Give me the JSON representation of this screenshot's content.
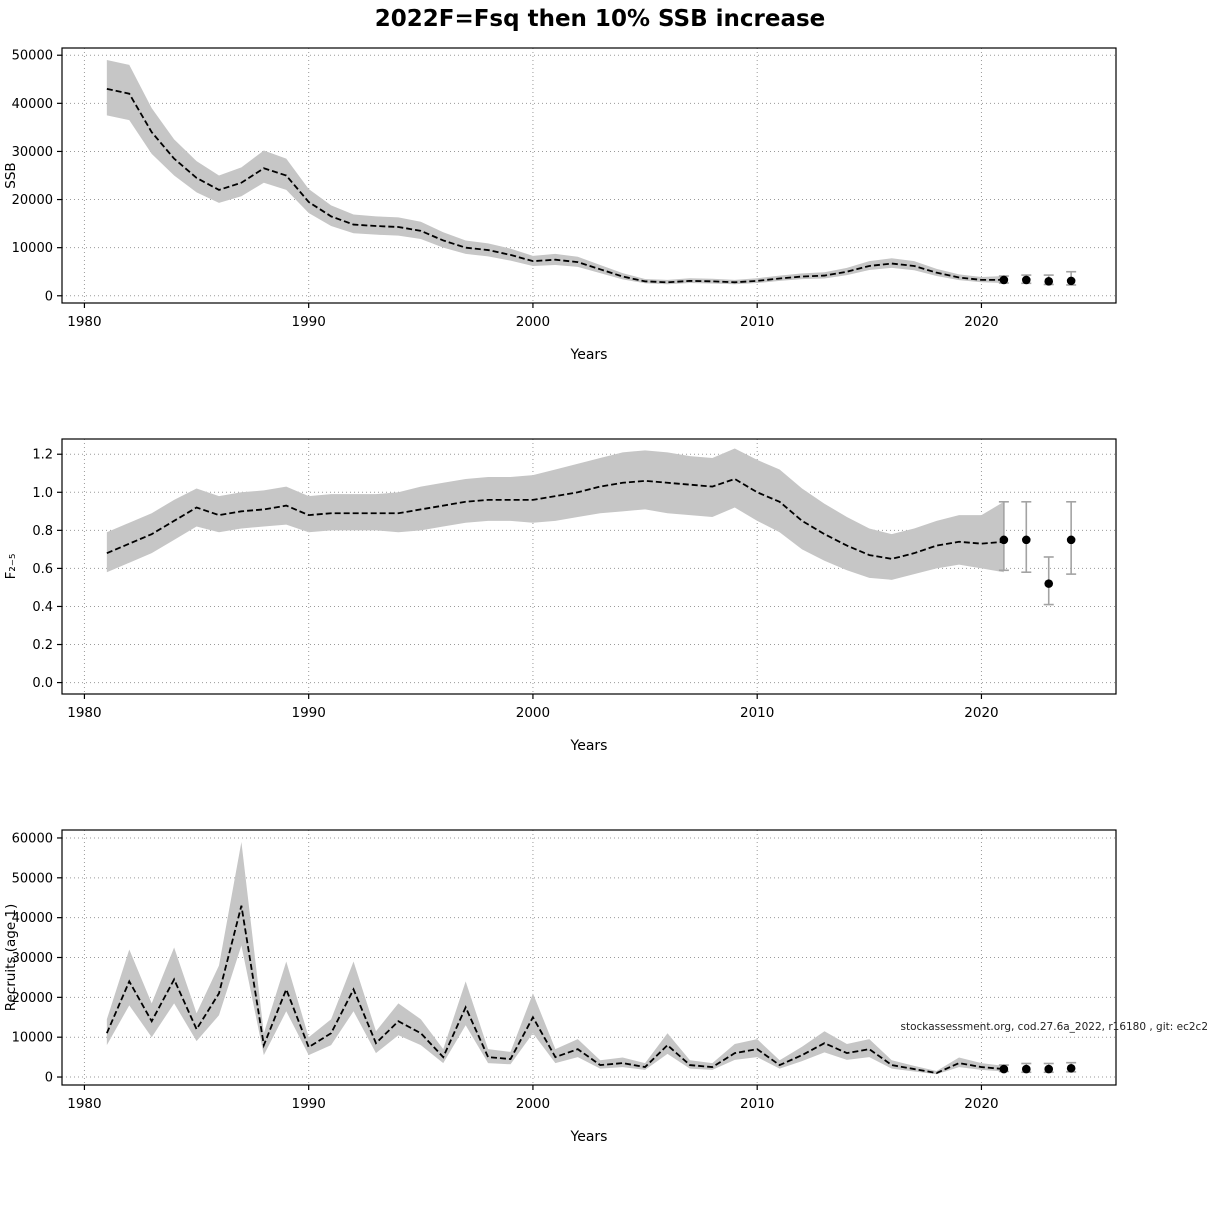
{
  "page": {
    "title": "2022F=Fsq then 10% SSB increase",
    "watermark": "stockassessment.org, cod.27.6a_2022, r16180 , git: ec2c2"
  },
  "colors": {
    "band": "#c6c6c6",
    "line": "#000000",
    "grid": "#9a9a9a",
    "errbar": "#a3a3a3",
    "axis": "#000000",
    "dot": "#000000"
  },
  "chart_data": [
    {
      "type": "line",
      "name": "ssb",
      "title": "",
      "xlabel": "Years",
      "ylabel": "SSB",
      "xlim": [
        1979,
        2026
      ],
      "ylim": [
        -1500,
        51500
      ],
      "xticks": [
        1980,
        1990,
        2000,
        2010,
        2020
      ],
      "ytick_values": [
        0,
        10000,
        20000,
        30000,
        40000,
        50000
      ],
      "ytick_labels": [
        "0",
        "10000",
        "20000",
        "30000",
        "40000",
        "50000"
      ],
      "x": [
        1981,
        1982,
        1983,
        1984,
        1985,
        1986,
        1987,
        1988,
        1989,
        1990,
        1991,
        1992,
        1993,
        1994,
        1995,
        1996,
        1997,
        1998,
        1999,
        2000,
        2001,
        2002,
        2003,
        2004,
        2005,
        2006,
        2007,
        2008,
        2009,
        2010,
        2011,
        2012,
        2013,
        2014,
        2015,
        2016,
        2017,
        2018,
        2019,
        2020,
        2021
      ],
      "mean": [
        43000,
        42000,
        34000,
        28500,
        24500,
        22000,
        23500,
        26500,
        25000,
        19500,
        16500,
        14800,
        14500,
        14300,
        13500,
        11500,
        10000,
        9500,
        8500,
        7200,
        7500,
        7000,
        5500,
        4000,
        3000,
        2800,
        3100,
        3000,
        2800,
        3100,
        3600,
        4000,
        4200,
        5000,
        6200,
        6700,
        6200,
        4800,
        3800,
        3300,
        3300
      ],
      "lower": [
        37500,
        36500,
        29500,
        25000,
        21500,
        19300,
        20700,
        23500,
        22000,
        17200,
        14500,
        13000,
        12700,
        12500,
        11800,
        10000,
        8700,
        8200,
        7300,
        6200,
        6400,
        6000,
        4700,
        3400,
        2600,
        2400,
        2650,
        2550,
        2400,
        2650,
        3100,
        3450,
        3600,
        4300,
        5350,
        5800,
        5300,
        4100,
        3250,
        2800,
        2650
      ],
      "upper": [
        49000,
        48000,
        39000,
        32500,
        28000,
        25000,
        26700,
        30200,
        28500,
        22200,
        18800,
        16900,
        16500,
        16300,
        15400,
        13200,
        11500,
        10900,
        9800,
        8300,
        8700,
        8100,
        6400,
        4700,
        3500,
        3300,
        3650,
        3550,
        3300,
        3650,
        4200,
        4650,
        4900,
        5800,
        7200,
        7800,
        7200,
        5600,
        4450,
        3900,
        4100
      ],
      "forecast": {
        "x": [
          2021,
          2022,
          2023,
          2024
        ],
        "y": [
          3300,
          3300,
          3000,
          3100
        ],
        "lower": [
          2650,
          2600,
          2350,
          2250
        ],
        "upper": [
          4100,
          4300,
          4300,
          5000
        ]
      }
    },
    {
      "type": "line",
      "name": "f2-5",
      "title": "",
      "xlabel": "Years",
      "ylabel": "F₂₋₅",
      "xlim": [
        1979,
        2026
      ],
      "ylim": [
        -0.06,
        1.28
      ],
      "xticks": [
        1980,
        1990,
        2000,
        2010,
        2020
      ],
      "ytick_values": [
        0.0,
        0.2,
        0.4,
        0.6,
        0.8,
        1.0,
        1.2
      ],
      "ytick_labels": [
        "0.0",
        "0.2",
        "0.4",
        "0.6",
        "0.8",
        "1.0",
        "1.2"
      ],
      "x": [
        1981,
        1982,
        1983,
        1984,
        1985,
        1986,
        1987,
        1988,
        1989,
        1990,
        1991,
        1992,
        1993,
        1994,
        1995,
        1996,
        1997,
        1998,
        1999,
        2000,
        2001,
        2002,
        2003,
        2004,
        2005,
        2006,
        2007,
        2008,
        2009,
        2010,
        2011,
        2012,
        2013,
        2014,
        2015,
        2016,
        2017,
        2018,
        2019,
        2020,
        2021
      ],
      "mean": [
        0.68,
        0.73,
        0.78,
        0.85,
        0.92,
        0.88,
        0.9,
        0.91,
        0.93,
        0.88,
        0.89,
        0.89,
        0.89,
        0.89,
        0.91,
        0.93,
        0.95,
        0.96,
        0.96,
        0.96,
        0.98,
        1.0,
        1.03,
        1.05,
        1.06,
        1.05,
        1.04,
        1.03,
        1.07,
        1.0,
        0.95,
        0.85,
        0.78,
        0.72,
        0.67,
        0.65,
        0.68,
        0.72,
        0.74,
        0.73,
        0.74
      ],
      "lower": [
        0.58,
        0.63,
        0.68,
        0.75,
        0.82,
        0.79,
        0.81,
        0.82,
        0.83,
        0.79,
        0.8,
        0.8,
        0.8,
        0.79,
        0.8,
        0.82,
        0.84,
        0.85,
        0.85,
        0.84,
        0.85,
        0.87,
        0.89,
        0.9,
        0.91,
        0.89,
        0.88,
        0.87,
        0.92,
        0.85,
        0.79,
        0.7,
        0.64,
        0.59,
        0.55,
        0.54,
        0.57,
        0.6,
        0.62,
        0.6,
        0.58
      ],
      "upper": [
        0.79,
        0.84,
        0.89,
        0.96,
        1.02,
        0.98,
        1.0,
        1.01,
        1.03,
        0.98,
        0.99,
        0.99,
        0.99,
        1.0,
        1.03,
        1.05,
        1.07,
        1.08,
        1.08,
        1.09,
        1.12,
        1.15,
        1.18,
        1.21,
        1.22,
        1.21,
        1.19,
        1.18,
        1.23,
        1.17,
        1.12,
        1.02,
        0.94,
        0.87,
        0.81,
        0.78,
        0.81,
        0.85,
        0.88,
        0.88,
        0.95
      ],
      "forecast": {
        "x": [
          2021,
          2022,
          2023,
          2024
        ],
        "y": [
          0.75,
          0.75,
          0.52,
          0.75
        ],
        "lower": [
          0.59,
          0.58,
          0.41,
          0.57
        ],
        "upper": [
          0.95,
          0.95,
          0.66,
          0.95
        ]
      }
    },
    {
      "type": "line",
      "name": "recruits",
      "title": "",
      "xlabel": "Years",
      "ylabel": "Recruits (age 1)",
      "xlim": [
        1979,
        2026
      ],
      "ylim": [
        -2000,
        62000
      ],
      "xticks": [
        1980,
        1990,
        2000,
        2010,
        2020
      ],
      "ytick_values": [
        0,
        10000,
        20000,
        30000,
        40000,
        50000,
        60000
      ],
      "ytick_labels": [
        "0",
        "10000",
        "20000",
        "30000",
        "40000",
        "50000",
        "60000"
      ],
      "x": [
        1981,
        1982,
        1983,
        1984,
        1985,
        1986,
        1987,
        1988,
        1989,
        1990,
        1991,
        1992,
        1993,
        1994,
        1995,
        1996,
        1997,
        1998,
        1999,
        2000,
        2001,
        2002,
        2003,
        2004,
        2005,
        2006,
        2007,
        2008,
        2009,
        2010,
        2011,
        2012,
        2013,
        2014,
        2015,
        2016,
        2017,
        2018,
        2019,
        2020,
        2021
      ],
      "mean": [
        11000,
        24000,
        14000,
        24500,
        12000,
        21000,
        43000,
        8000,
        22000,
        7500,
        11000,
        22000,
        8500,
        14000,
        11000,
        5000,
        17500,
        5000,
        4500,
        15000,
        5000,
        7000,
        3000,
        3500,
        2500,
        8000,
        3000,
        2500,
        6000,
        7000,
        3000,
        5500,
        8500,
        6000,
        7000,
        3000,
        2000,
        1000,
        3500,
        2500,
        2000
      ],
      "lower": [
        8000,
        18000,
        10000,
        18500,
        9000,
        15500,
        33000,
        5500,
        16500,
        5500,
        8000,
        16500,
        6000,
        10500,
        8000,
        3500,
        13000,
        3500,
        3200,
        11000,
        3500,
        5000,
        2100,
        2500,
        1800,
        5800,
        2100,
        1800,
        4300,
        5000,
        2100,
        4000,
        6200,
        4300,
        5000,
        2100,
        1400,
        700,
        2500,
        1800,
        1400
      ],
      "upper": [
        14500,
        32000,
        18500,
        32500,
        16000,
        28000,
        59000,
        11000,
        29000,
        10000,
        14500,
        29000,
        11500,
        18500,
        14500,
        7000,
        24000,
        7000,
        6300,
        21000,
        7000,
        9500,
        4200,
        4900,
        3500,
        11000,
        4200,
        3500,
        8300,
        9500,
        4200,
        7600,
        11500,
        8300,
        9500,
        4200,
        2800,
        1500,
        4900,
        3500,
        2800
      ],
      "forecast": {
        "x": [
          2021,
          2022,
          2023,
          2024
        ],
        "y": [
          2000,
          2000,
          2000,
          2200
        ],
        "lower": [
          1400,
          1200,
          1200,
          1300
        ],
        "upper": [
          3000,
          3400,
          3400,
          3600
        ]
      }
    }
  ]
}
